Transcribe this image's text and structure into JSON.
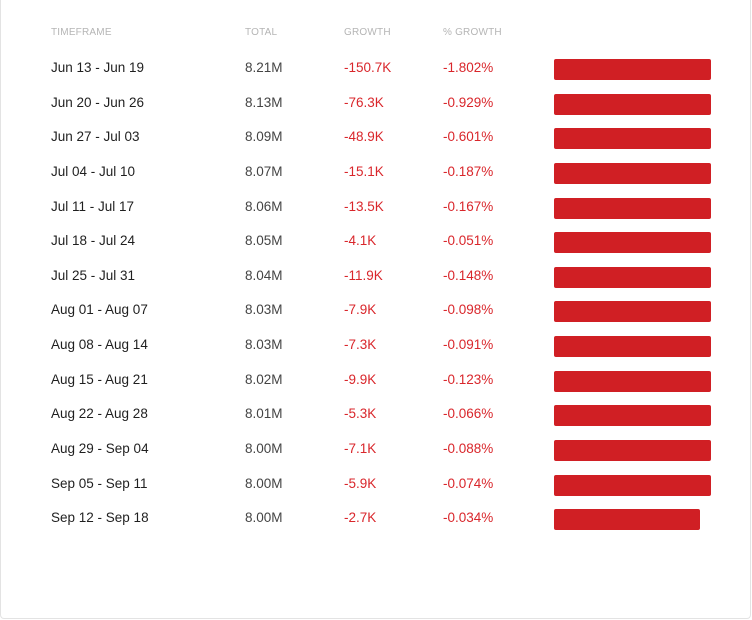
{
  "table": {
    "headers": {
      "timeframe": "TIMEFRAME",
      "total": "TOTAL",
      "growth": "GROWTH",
      "pct_growth": "% GROWTH"
    },
    "bar_color": "#d01f24",
    "rows": [
      {
        "timeframe": "Jun 13 - Jun 19",
        "total": "8.21M",
        "growth": "-150.7K",
        "pct_growth": "-1.802%",
        "bar_fill": 1.0
      },
      {
        "timeframe": "Jun 20 - Jun 26",
        "total": "8.13M",
        "growth": "-76.3K",
        "pct_growth": "-0.929%",
        "bar_fill": 1.0
      },
      {
        "timeframe": "Jun 27 - Jul 03",
        "total": "8.09M",
        "growth": "-48.9K",
        "pct_growth": "-0.601%",
        "bar_fill": 1.0
      },
      {
        "timeframe": "Jul 04 - Jul 10",
        "total": "8.07M",
        "growth": "-15.1K",
        "pct_growth": "-0.187%",
        "bar_fill": 1.0
      },
      {
        "timeframe": "Jul 11 - Jul 17",
        "total": "8.06M",
        "growth": "-13.5K",
        "pct_growth": "-0.167%",
        "bar_fill": 1.0
      },
      {
        "timeframe": "Jul 18 - Jul 24",
        "total": "8.05M",
        "growth": "-4.1K",
        "pct_growth": "-0.051%",
        "bar_fill": 1.0
      },
      {
        "timeframe": "Jul 25 - Jul 31",
        "total": "8.04M",
        "growth": "-11.9K",
        "pct_growth": "-0.148%",
        "bar_fill": 1.0
      },
      {
        "timeframe": "Aug 01 - Aug 07",
        "total": "8.03M",
        "growth": "-7.9K",
        "pct_growth": "-0.098%",
        "bar_fill": 1.0
      },
      {
        "timeframe": "Aug 08 - Aug 14",
        "total": "8.03M",
        "growth": "-7.3K",
        "pct_growth": "-0.091%",
        "bar_fill": 1.0
      },
      {
        "timeframe": "Aug 15 - Aug 21",
        "total": "8.02M",
        "growth": "-9.9K",
        "pct_growth": "-0.123%",
        "bar_fill": 1.0
      },
      {
        "timeframe": "Aug 22 - Aug 28",
        "total": "8.01M",
        "growth": "-5.3K",
        "pct_growth": "-0.066%",
        "bar_fill": 1.0
      },
      {
        "timeframe": "Aug 29 - Sep 04",
        "total": "8.00M",
        "growth": "-7.1K",
        "pct_growth": "-0.088%",
        "bar_fill": 1.0
      },
      {
        "timeframe": "Sep 05 - Sep 11",
        "total": "8.00M",
        "growth": "-5.9K",
        "pct_growth": "-0.074%",
        "bar_fill": 1.0
      },
      {
        "timeframe": "Sep 12 - Sep 18",
        "total": "8.00M",
        "growth": "-2.7K",
        "pct_growth": "-0.034%",
        "bar_fill": 0.93
      }
    ]
  }
}
